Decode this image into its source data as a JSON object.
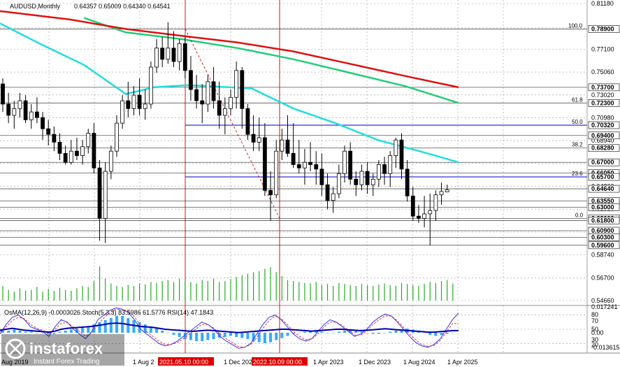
{
  "chart_data": {
    "type": "candlestick",
    "symbol_title": "AUDUSD,Monthly",
    "ohlc_header": "0.64357 0.65009 0.64340 0.64541",
    "price_axis": {
      "min": 0.5466,
      "max": 0.8118,
      "ticks": [
        "0.81180",
        "0.79000",
        "0.77100",
        "0.75060",
        "0.73020",
        "0.70980",
        "0.68940",
        "0.66900",
        "0.64860",
        "0.62820",
        "0.60780",
        "0.58740",
        "0.56700",
        "0.54660"
      ],
      "highlighted": [
        {
          "label": "0.78900",
          "value": 0.789
        },
        {
          "label": "0.73700",
          "value": 0.737
        },
        {
          "label": "0.72300",
          "value": 0.723
        },
        {
          "label": "0.70320",
          "value": 0.7032
        },
        {
          "label": "0.69400",
          "value": 0.694
        },
        {
          "label": "0.68280",
          "value": 0.6828
        },
        {
          "label": "0.67000",
          "value": 0.67
        },
        {
          "label": "0.66050",
          "value": 0.6605
        },
        {
          "label": "0.65700",
          "value": 0.657
        },
        {
          "label": "0.64640",
          "value": 0.6464
        },
        {
          "label": "0.63550",
          "value": 0.6355
        },
        {
          "label": "0.63000",
          "value": 0.63
        },
        {
          "label": "0.62000",
          "value": 0.62
        },
        {
          "label": "0.61800",
          "value": 0.618
        },
        {
          "label": "0.60900",
          "value": 0.609
        },
        {
          "label": "0.60300",
          "value": 0.603
        },
        {
          "label": "0.59600",
          "value": 0.596
        }
      ]
    },
    "fib_levels": [
      {
        "label": "100.0",
        "value": 0.789
      },
      {
        "label": "61.8",
        "value": 0.723
      },
      {
        "label": "50.0",
        "value": 0.7032
      },
      {
        "label": "38.2",
        "value": 0.6828
      },
      {
        "label": "23.6",
        "value": 0.657
      },
      {
        "label": "0.0",
        "value": 0.62
      }
    ],
    "x_labels": [
      "Aug 2019",
      "1 Aug 2",
      "2021.05.10 00:00",
      "1 Dec 202",
      "2022.10.09 00:00",
      "1 Apr 2023",
      "1 Dec 2023",
      "1 Aug 2024",
      "1 Apr 2025"
    ],
    "vertical_markers": [
      "2021.05.10 00:00",
      "2022.10.09 00:00"
    ],
    "candles": [
      [
        0.74,
        0.745,
        0.715,
        0.722
      ],
      [
        0.722,
        0.732,
        0.705,
        0.712
      ],
      [
        0.712,
        0.725,
        0.7,
        0.718
      ],
      [
        0.718,
        0.732,
        0.71,
        0.725
      ],
      [
        0.725,
        0.73,
        0.705,
        0.708
      ],
      [
        0.708,
        0.722,
        0.7,
        0.715
      ],
      [
        0.715,
        0.728,
        0.705,
        0.71
      ],
      [
        0.71,
        0.715,
        0.69,
        0.7
      ],
      [
        0.7,
        0.708,
        0.685,
        0.695
      ],
      [
        0.695,
        0.702,
        0.68,
        0.688
      ],
      [
        0.688,
        0.696,
        0.672,
        0.678
      ],
      [
        0.678,
        0.685,
        0.668,
        0.67
      ],
      [
        0.67,
        0.69,
        0.668,
        0.68
      ],
      [
        0.68,
        0.692,
        0.672,
        0.676
      ],
      [
        0.676,
        0.69,
        0.668,
        0.684
      ],
      [
        0.684,
        0.7,
        0.678,
        0.696
      ],
      [
        0.696,
        0.705,
        0.66,
        0.665
      ],
      [
        0.665,
        0.672,
        0.6,
        0.62
      ],
      [
        0.62,
        0.67,
        0.598,
        0.662
      ],
      [
        0.662,
        0.685,
        0.655,
        0.68
      ],
      [
        0.68,
        0.712,
        0.675,
        0.705
      ],
      [
        0.705,
        0.73,
        0.7,
        0.725
      ],
      [
        0.725,
        0.742,
        0.71,
        0.718
      ],
      [
        0.718,
        0.738,
        0.712,
        0.73
      ],
      [
        0.73,
        0.745,
        0.712,
        0.718
      ],
      [
        0.718,
        0.735,
        0.708,
        0.722
      ],
      [
        0.722,
        0.76,
        0.718,
        0.755
      ],
      [
        0.755,
        0.78,
        0.75,
        0.772
      ],
      [
        0.772,
        0.782,
        0.755,
        0.762
      ],
      [
        0.762,
        0.795,
        0.758,
        0.772
      ],
      [
        0.772,
        0.787,
        0.755,
        0.76
      ],
      [
        0.76,
        0.78,
        0.752,
        0.776
      ],
      [
        0.776,
        0.782,
        0.745,
        0.752
      ],
      [
        0.752,
        0.765,
        0.725,
        0.735
      ],
      [
        0.735,
        0.748,
        0.718,
        0.725
      ],
      [
        0.725,
        0.74,
        0.705,
        0.722
      ],
      [
        0.722,
        0.748,
        0.715,
        0.742
      ],
      [
        0.742,
        0.755,
        0.718,
        0.725
      ],
      [
        0.725,
        0.742,
        0.7,
        0.712
      ],
      [
        0.712,
        0.728,
        0.695,
        0.718
      ],
      [
        0.718,
        0.735,
        0.712,
        0.728
      ],
      [
        0.728,
        0.76,
        0.718,
        0.752
      ],
      [
        0.752,
        0.755,
        0.7,
        0.718
      ],
      [
        0.718,
        0.722,
        0.69,
        0.695
      ],
      [
        0.695,
        0.712,
        0.68,
        0.688
      ],
      [
        0.688,
        0.71,
        0.68,
        0.692
      ],
      [
        0.692,
        0.705,
        0.64,
        0.645
      ],
      [
        0.645,
        0.662,
        0.618,
        0.641
      ],
      [
        0.641,
        0.69,
        0.638,
        0.68
      ],
      [
        0.68,
        0.7,
        0.672,
        0.69
      ],
      [
        0.69,
        0.712,
        0.675,
        0.678
      ],
      [
        0.678,
        0.705,
        0.665,
        0.668
      ],
      [
        0.668,
        0.69,
        0.66,
        0.665
      ],
      [
        0.665,
        0.682,
        0.65,
        0.67
      ],
      [
        0.67,
        0.688,
        0.662,
        0.668
      ],
      [
        0.668,
        0.68,
        0.65,
        0.664
      ],
      [
        0.664,
        0.678,
        0.64,
        0.65
      ],
      [
        0.65,
        0.66,
        0.628,
        0.636
      ],
      [
        0.636,
        0.648,
        0.625,
        0.642
      ],
      [
        0.642,
        0.668,
        0.638,
        0.66
      ],
      [
        0.66,
        0.685,
        0.652,
        0.68
      ],
      [
        0.68,
        0.688,
        0.65,
        0.655
      ],
      [
        0.655,
        0.662,
        0.64,
        0.65
      ],
      [
        0.65,
        0.668,
        0.645,
        0.662
      ],
      [
        0.662,
        0.67,
        0.642,
        0.65
      ],
      [
        0.65,
        0.66,
        0.64,
        0.655
      ],
      [
        0.655,
        0.672,
        0.648,
        0.668
      ],
      [
        0.668,
        0.675,
        0.65,
        0.66
      ],
      [
        0.66,
        0.68,
        0.648,
        0.676
      ],
      [
        0.676,
        0.692,
        0.665,
        0.69
      ],
      [
        0.69,
        0.696,
        0.655,
        0.664
      ],
      [
        0.664,
        0.672,
        0.635,
        0.64
      ],
      [
        0.64,
        0.648,
        0.618,
        0.622
      ],
      [
        0.622,
        0.632,
        0.616,
        0.62
      ],
      [
        0.62,
        0.64,
        0.612,
        0.624
      ],
      [
        0.624,
        0.642,
        0.596,
        0.627
      ],
      [
        0.627,
        0.645,
        0.618,
        0.641
      ],
      [
        0.641,
        0.652,
        0.632,
        0.644
      ],
      [
        0.64357,
        0.65009,
        0.6434,
        0.64541
      ]
    ],
    "ma_red": [
      [
        0,
        0.805
      ],
      [
        100,
        0.7975
      ],
      [
        180,
        0.789
      ],
      [
        260,
        0.783
      ],
      [
        340,
        0.777
      ],
      [
        420,
        0.769
      ],
      [
        500,
        0.758
      ],
      [
        580,
        0.747
      ],
      [
        656,
        0.737
      ]
    ],
    "ma_green": [
      [
        120,
        0.799
      ],
      [
        180,
        0.786
      ],
      [
        260,
        0.78
      ],
      [
        340,
        0.772
      ],
      [
        420,
        0.762
      ],
      [
        500,
        0.75
      ],
      [
        580,
        0.738
      ],
      [
        656,
        0.723
      ]
    ],
    "ma_cyan": [
      [
        0,
        0.794
      ],
      [
        60,
        0.775
      ],
      [
        120,
        0.757
      ],
      [
        180,
        0.731
      ],
      [
        220,
        0.737
      ],
      [
        270,
        0.739
      ],
      [
        360,
        0.736
      ],
      [
        420,
        0.718
      ],
      [
        480,
        0.705
      ],
      [
        540,
        0.69
      ],
      [
        600,
        0.68
      ],
      [
        656,
        0.67
      ]
    ],
    "volume_bars": [
      30,
      22,
      18,
      25,
      20,
      22,
      28,
      18,
      24,
      20,
      26,
      22,
      20,
      25,
      30,
      28,
      40,
      70,
      45,
      35,
      30,
      28,
      32,
      30,
      35,
      33,
      38,
      36,
      40,
      42,
      38,
      45,
      40,
      38,
      35,
      42,
      40,
      45,
      38,
      40,
      44,
      48,
      52,
      55,
      58,
      60,
      65,
      68,
      58,
      50,
      42,
      40,
      38,
      36,
      35,
      38,
      32,
      34,
      30,
      36,
      34,
      32,
      30,
      34,
      32,
      30,
      33,
      35,
      31,
      30,
      36,
      34,
      32,
      30,
      34,
      38,
      36,
      40,
      42,
      35
    ],
    "indicator": {
      "title": "OsMA(12,26,9) -0.0003026  Stoch(5,3,3) 83.5986 61.5776  RSI(14) 47.1843",
      "axis_ticks": [
        "0.017241",
        "80",
        "70",
        "50",
        "30",
        "20",
        "0.00",
        "-0.013615"
      ],
      "osma_bars": [
        2,
        2,
        3,
        2,
        1,
        1,
        0,
        0,
        -1,
        -1,
        1,
        2,
        3,
        4,
        5,
        6,
        8,
        10,
        12,
        14,
        16,
        16,
        14,
        12,
        10,
        8,
        6,
        4,
        2,
        0,
        -2,
        -4,
        -6,
        -7,
        -8,
        -8,
        -7,
        -6,
        -5,
        -4,
        -3,
        -4,
        -5,
        -6,
        -8,
        -9,
        -10,
        -9,
        -7,
        -5,
        -3,
        -1,
        0,
        1,
        2,
        2,
        1,
        0,
        0,
        1,
        2,
        3,
        2,
        1,
        0,
        -1,
        -1,
        0,
        1,
        2,
        3,
        4,
        3,
        2,
        0,
        -2,
        -3,
        -2,
        -1,
        0
      ],
      "stoch_main": [
        40,
        60,
        75,
        80,
        70,
        55,
        50,
        45,
        35,
        55,
        70,
        65,
        50,
        40,
        30,
        45,
        70,
        80,
        90,
        95,
        92,
        85,
        70,
        50,
        40,
        30,
        20,
        15,
        18,
        25,
        35,
        45,
        55,
        65,
        60,
        50,
        35,
        25,
        18,
        10,
        12,
        20,
        40,
        60,
        75,
        80,
        70,
        55,
        40,
        30,
        25,
        30,
        45,
        60,
        70,
        65,
        55,
        45,
        35,
        40,
        50,
        65,
        75,
        82,
        78,
        65,
        50,
        35,
        22,
        15,
        12,
        18,
        30,
        50,
        70,
        84
      ],
      "stoch_signal": [
        45,
        55,
        68,
        75,
        72,
        60,
        52,
        48,
        40,
        50,
        62,
        64,
        55,
        45,
        35,
        42,
        60,
        74,
        85,
        92,
        92,
        88,
        76,
        58,
        45,
        35,
        25,
        18,
        18,
        22,
        30,
        40,
        50,
        60,
        60,
        52,
        40,
        30,
        22,
        14,
        12,
        18,
        32,
        52,
        68,
        78,
        72,
        60,
        45,
        35,
        28,
        30,
        40,
        55,
        65,
        65,
        58,
        48,
        38,
        38,
        46,
        60,
        70,
        78,
        78,
        68,
        54,
        40,
        28,
        18,
        14,
        16,
        26,
        44,
        62,
        62
      ],
      "rsi": [
        48,
        50,
        52,
        50,
        48,
        47,
        46,
        45,
        44,
        46,
        50,
        52,
        53,
        54,
        55,
        56,
        58,
        60,
        62,
        63,
        62,
        60,
        58,
        56,
        55,
        54,
        52,
        50,
        49,
        48,
        47,
        46,
        46,
        47,
        48,
        47,
        46,
        45,
        44,
        43,
        44,
        45,
        46,
        47,
        48,
        49,
        50,
        50,
        49,
        48,
        47,
        46,
        47,
        48,
        49,
        50,
        50,
        49,
        48,
        47,
        48,
        49,
        50,
        51,
        50,
        49,
        48,
        47,
        46,
        45,
        44,
        44,
        45,
        46,
        47,
        47
      ]
    }
  },
  "watermark": {
    "brand": "instaforex",
    "tagline": "Instant Forex Trading"
  }
}
